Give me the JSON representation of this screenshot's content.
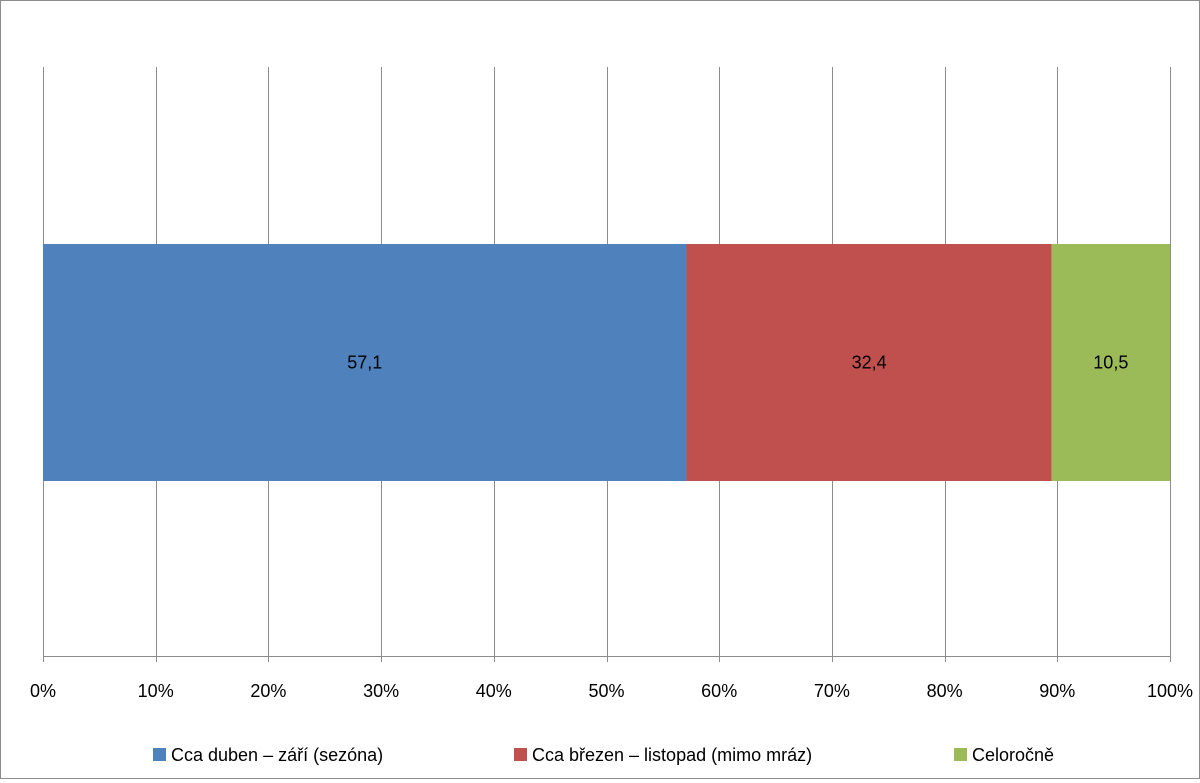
{
  "chart_data": {
    "type": "bar",
    "orientation": "horizontal",
    "stacked": true,
    "percent_scale": true,
    "categories": [
      ""
    ],
    "series": [
      {
        "name": "Cca duben – září (sezóna)",
        "values": [
          57.1
        ],
        "color": "#4F81BD",
        "label": "57,1"
      },
      {
        "name": "Cca březen – listopad (mimo mráz)",
        "values": [
          32.4
        ],
        "color": "#C0504D",
        "label": "32,4"
      },
      {
        "name": "Celoročně",
        "values": [
          10.5
        ],
        "color": "#9BBB59",
        "label": "10,5"
      }
    ],
    "xlim": [
      0,
      100
    ],
    "x_ticks": [
      0,
      10,
      20,
      30,
      40,
      50,
      60,
      70,
      80,
      90,
      100
    ],
    "x_tick_labels": [
      "0%",
      "10%",
      "20%",
      "30%",
      "40%",
      "50%",
      "60%",
      "70%",
      "80%",
      "90%",
      "100%"
    ],
    "title": "",
    "xlabel": "",
    "ylabel": "",
    "grid": true,
    "gridline_color": "#8c8c8c",
    "legend_position": "bottom"
  }
}
